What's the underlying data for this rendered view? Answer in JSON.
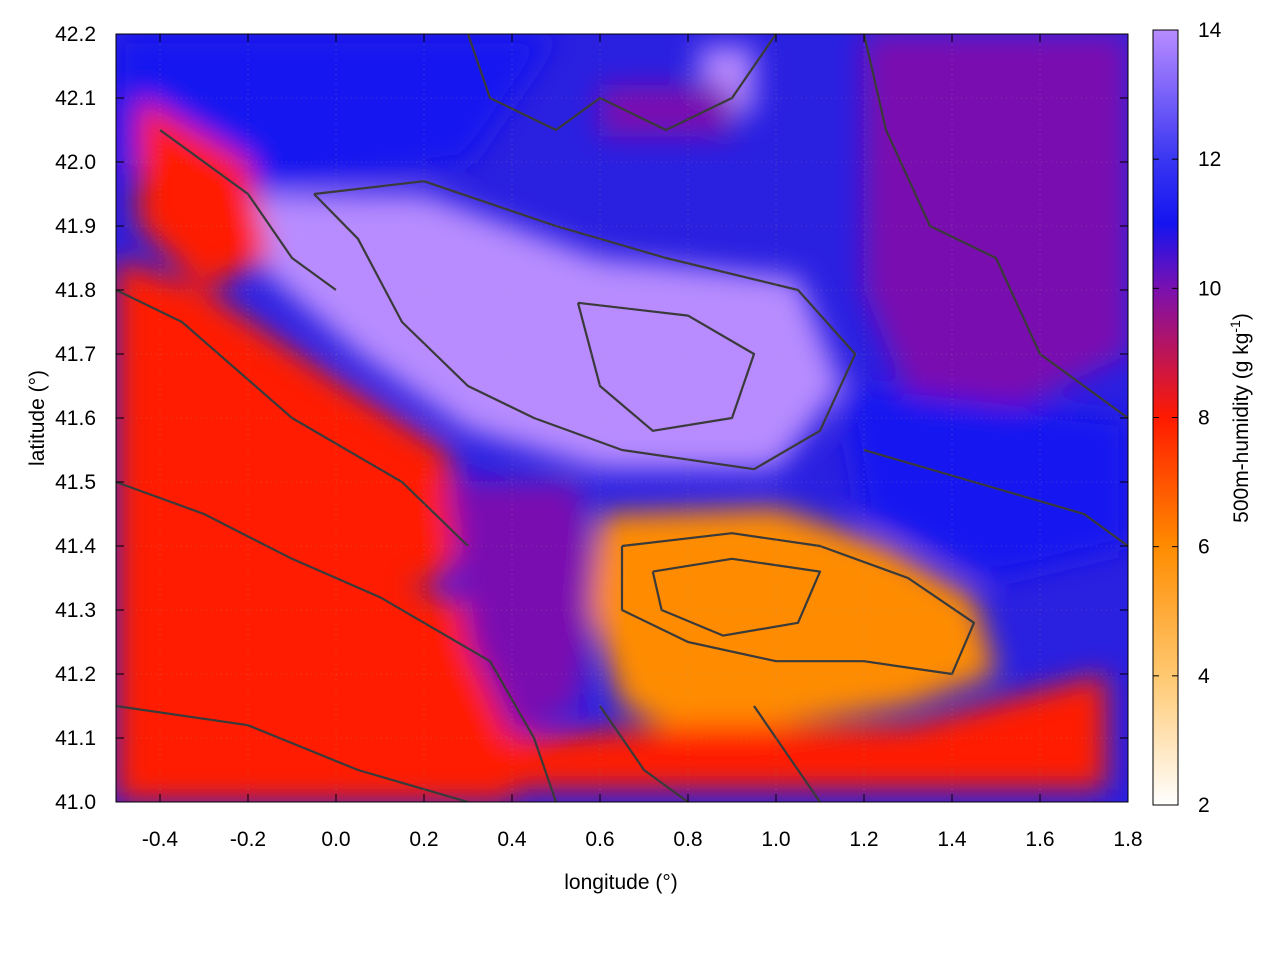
{
  "chart_data": {
    "type": "heatmap",
    "title": "",
    "xlabel": "longitude (°)",
    "ylabel": "latitude (°)",
    "colorbar_label": "500m-humidity (g kg",
    "colorbar_label_sup": "-1",
    "colorbar_label_end": ")",
    "xlim": [
      -0.5,
      1.8
    ],
    "ylim": [
      41.0,
      42.2
    ],
    "xticks": [
      -0.4,
      -0.2,
      0.0,
      0.2,
      0.4,
      0.6,
      0.8,
      1.0,
      1.2,
      1.4,
      1.6,
      1.8
    ],
    "xtick_labels": [
      "-0.4",
      "-0.2",
      "0.0",
      "0.2",
      "0.4",
      "0.6",
      "0.8",
      "1.0",
      "1.2",
      "1.4",
      "1.6",
      "1.8"
    ],
    "yticks": [
      41.0,
      41.1,
      41.2,
      41.3,
      41.4,
      41.5,
      41.6,
      41.7,
      41.8,
      41.9,
      42.0,
      42.1,
      42.2
    ],
    "ytick_labels": [
      "41.0",
      "41.1",
      "41.2",
      "41.3",
      "41.4",
      "41.5",
      "41.6",
      "41.7",
      "41.8",
      "41.9",
      "42.0",
      "42.1",
      "42.2"
    ],
    "cbar_range": [
      2,
      14
    ],
    "cbar_ticks": [
      2,
      4,
      6,
      8,
      10,
      12,
      14
    ],
    "cbar_tick_labels": [
      "2",
      "4",
      "6",
      "8",
      "10",
      "12",
      "14"
    ],
    "colormap": [
      {
        "v": 2,
        "color": "#ffffff"
      },
      {
        "v": 4,
        "color": "#ffc870"
      },
      {
        "v": 6,
        "color": "#ff8c00"
      },
      {
        "v": 8,
        "color": "#ff1a00"
      },
      {
        "v": 10,
        "color": "#7a10b0"
      },
      {
        "v": 11,
        "color": "#1414f0"
      },
      {
        "v": 12,
        "color": "#3a36f2"
      },
      {
        "v": 14,
        "color": "#b88cff"
      }
    ],
    "field_description": "moist (purple-blue) over north and central-east, dry (orange-red) over southwest and south-central",
    "grid": true,
    "contours": true
  }
}
